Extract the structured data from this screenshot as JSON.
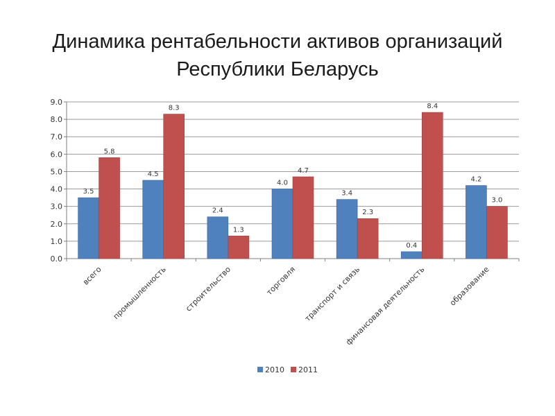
{
  "chart_data": {
    "type": "bar",
    "title_lines": [
      "Динамика рентабельности активов организаций",
      "Республики Беларусь"
    ],
    "categories": [
      "всего",
      "промышленность",
      "строительство",
      "торговля",
      "транспорт и связь",
      "финансовая деятельность",
      "образование"
    ],
    "series": [
      {
        "name": "2010",
        "color": "#4F81BD",
        "values": [
          3.5,
          4.5,
          2.4,
          4.0,
          3.4,
          0.4,
          4.2
        ]
      },
      {
        "name": "2011",
        "color": "#C0504D",
        "values": [
          5.8,
          8.3,
          1.3,
          4.7,
          2.3,
          8.4,
          3.0
        ]
      }
    ],
    "ylim": [
      0,
      9
    ],
    "y_ticks": [
      "0.0",
      "1.0",
      "2.0",
      "3.0",
      "4.0",
      "5.0",
      "6.0",
      "7.0",
      "8.0",
      "9.0"
    ],
    "data_labels": [
      [
        "3.5",
        "4.5",
        "2.4",
        "4.0",
        "3.4",
        "0.4",
        "4.2"
      ],
      [
        "5.8",
        "8.3",
        "1.3",
        "4.7",
        "2.3",
        "8.4",
        "3.0"
      ]
    ],
    "grid": true,
    "legend_position": "bottom"
  }
}
